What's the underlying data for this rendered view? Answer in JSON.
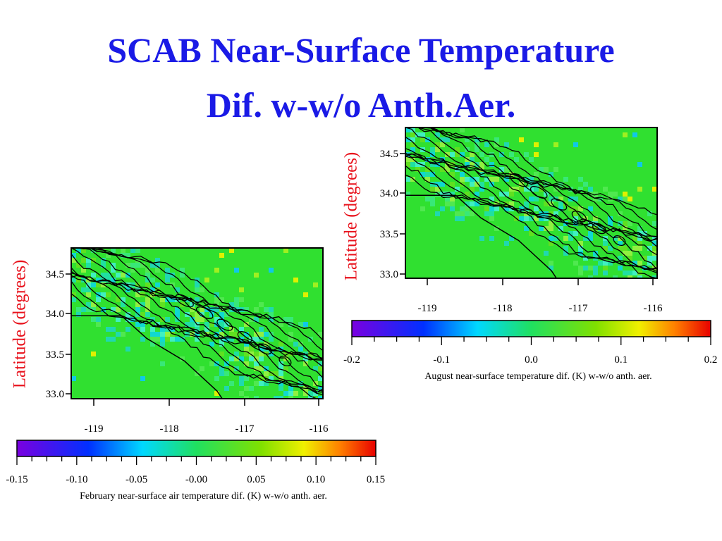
{
  "title": {
    "line1": "SCAB Near-Surface Temperature",
    "line2": "Dif. w-w/o Anth.Aer."
  },
  "panels": [
    {
      "y_label": "Latitude (degrees)",
      "y_ticks": [
        "34.5",
        "34.0",
        "33.5",
        "33.0"
      ],
      "x_ticks": [
        "-119",
        "-118",
        "-117",
        "-116"
      ],
      "colorbar_ticks": [
        "-0.2",
        "-0.1",
        "0.0",
        "0.1",
        "0.2"
      ],
      "colorbar_label": "August near-surface temperature dif. (K) w-w/o anth. aer."
    },
    {
      "y_label": "Latitude (degrees)",
      "y_ticks": [
        "34.5",
        "34.0",
        "33.5",
        "33.0"
      ],
      "x_ticks": [
        "-119",
        "-118",
        "-117",
        "-116"
      ],
      "colorbar_ticks": [
        "-0.15",
        "-0.10",
        "-0.05",
        "-0.00",
        "0.05",
        "0.10",
        "0.15"
      ],
      "colorbar_label": "February near-surface air temperature dif. (K) w-w/o anth. aer."
    }
  ]
}
